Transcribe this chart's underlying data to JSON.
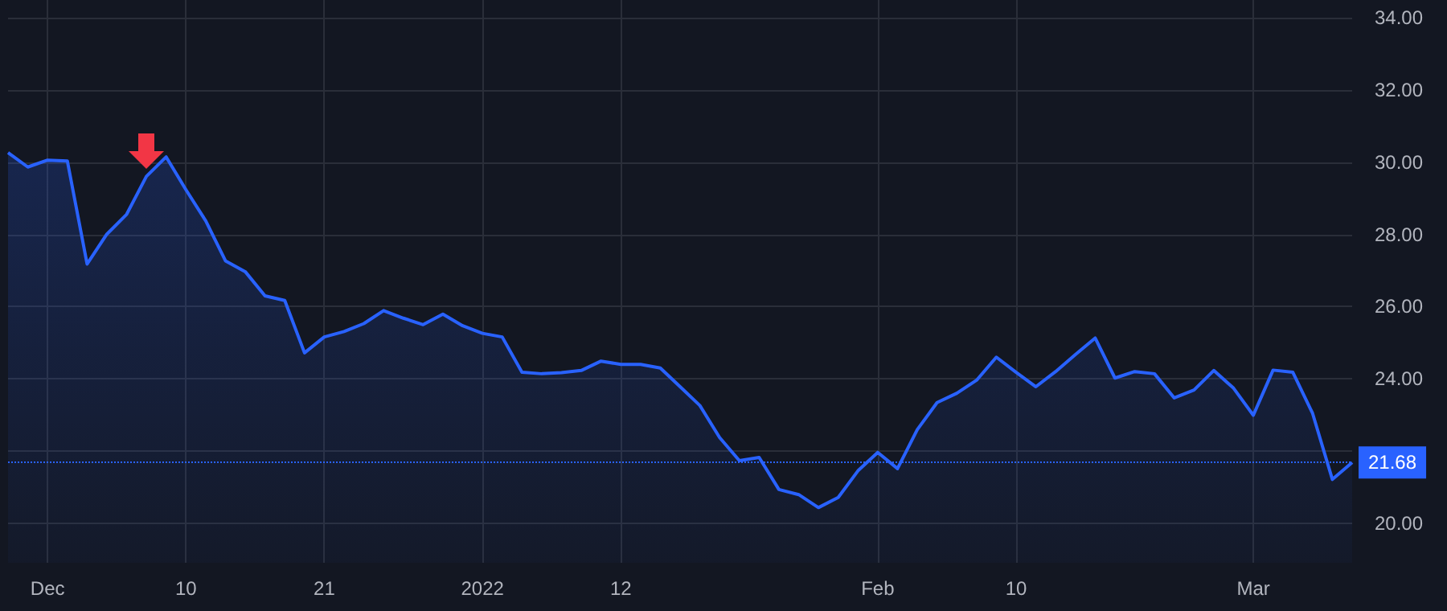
{
  "chart_data": {
    "type": "area",
    "categories": [
      null,
      null,
      "Dec",
      null,
      null,
      null,
      null,
      null,
      null,
      "10",
      null,
      null,
      null,
      null,
      null,
      null,
      "21",
      null,
      null,
      null,
      null,
      null,
      null,
      null,
      "2022",
      null,
      null,
      null,
      null,
      null,
      null,
      "12",
      null,
      null,
      null,
      null,
      null,
      null,
      null,
      null,
      null,
      null,
      null,
      null,
      "Feb",
      null,
      null,
      null,
      null,
      null,
      null,
      "10",
      null,
      null,
      null,
      null,
      null,
      null,
      null,
      null,
      null,
      null,
      null,
      "Mar",
      null,
      null,
      null,
      null,
      null
    ],
    "series": [
      {
        "color": "#2962ff",
        "values": [
          30.27,
          29.87,
          30.06,
          30.04,
          27.18,
          28.01,
          28.56,
          29.61,
          30.15,
          29.24,
          28.38,
          27.27,
          26.97,
          26.3,
          26.17,
          24.72,
          25.16,
          25.31,
          25.53,
          25.89,
          25.68,
          25.5,
          25.79,
          25.47,
          25.26,
          25.16,
          24.18,
          24.14,
          24.17,
          24.23,
          24.49,
          24.4,
          24.4,
          24.3,
          23.78,
          23.26,
          22.37,
          21.73,
          21.82,
          20.93,
          20.79,
          20.43,
          20.71,
          21.45,
          21.96,
          21.51,
          22.59,
          23.34,
          23.6,
          23.96,
          24.6,
          24.18,
          23.78,
          24.2,
          24.67,
          25.13,
          24.02,
          24.2,
          24.14,
          23.47,
          23.69,
          24.23,
          23.74,
          22.99,
          24.24,
          24.18,
          23.04,
          21.21,
          21.68
        ]
      }
    ],
    "ylim": [
      18.9,
      34.5
    ],
    "yticks": [
      {
        "value": 20,
        "label": "20.00"
      },
      {
        "value": 22,
        "label": null
      },
      {
        "value": 24,
        "label": "24.00"
      },
      {
        "value": 26,
        "label": "26.00"
      },
      {
        "value": 28,
        "label": "28.00"
      },
      {
        "value": 30,
        "label": "30.00"
      },
      {
        "value": 32,
        "label": "32.00"
      },
      {
        "value": 34,
        "label": "34.00"
      }
    ],
    "ref_lines": [
      {
        "axis": "y",
        "value": 21.68,
        "label": "21.68",
        "color": "#2962ff",
        "line_style": "dotted"
      }
    ],
    "grid": true,
    "line_style": "solid"
  }
}
